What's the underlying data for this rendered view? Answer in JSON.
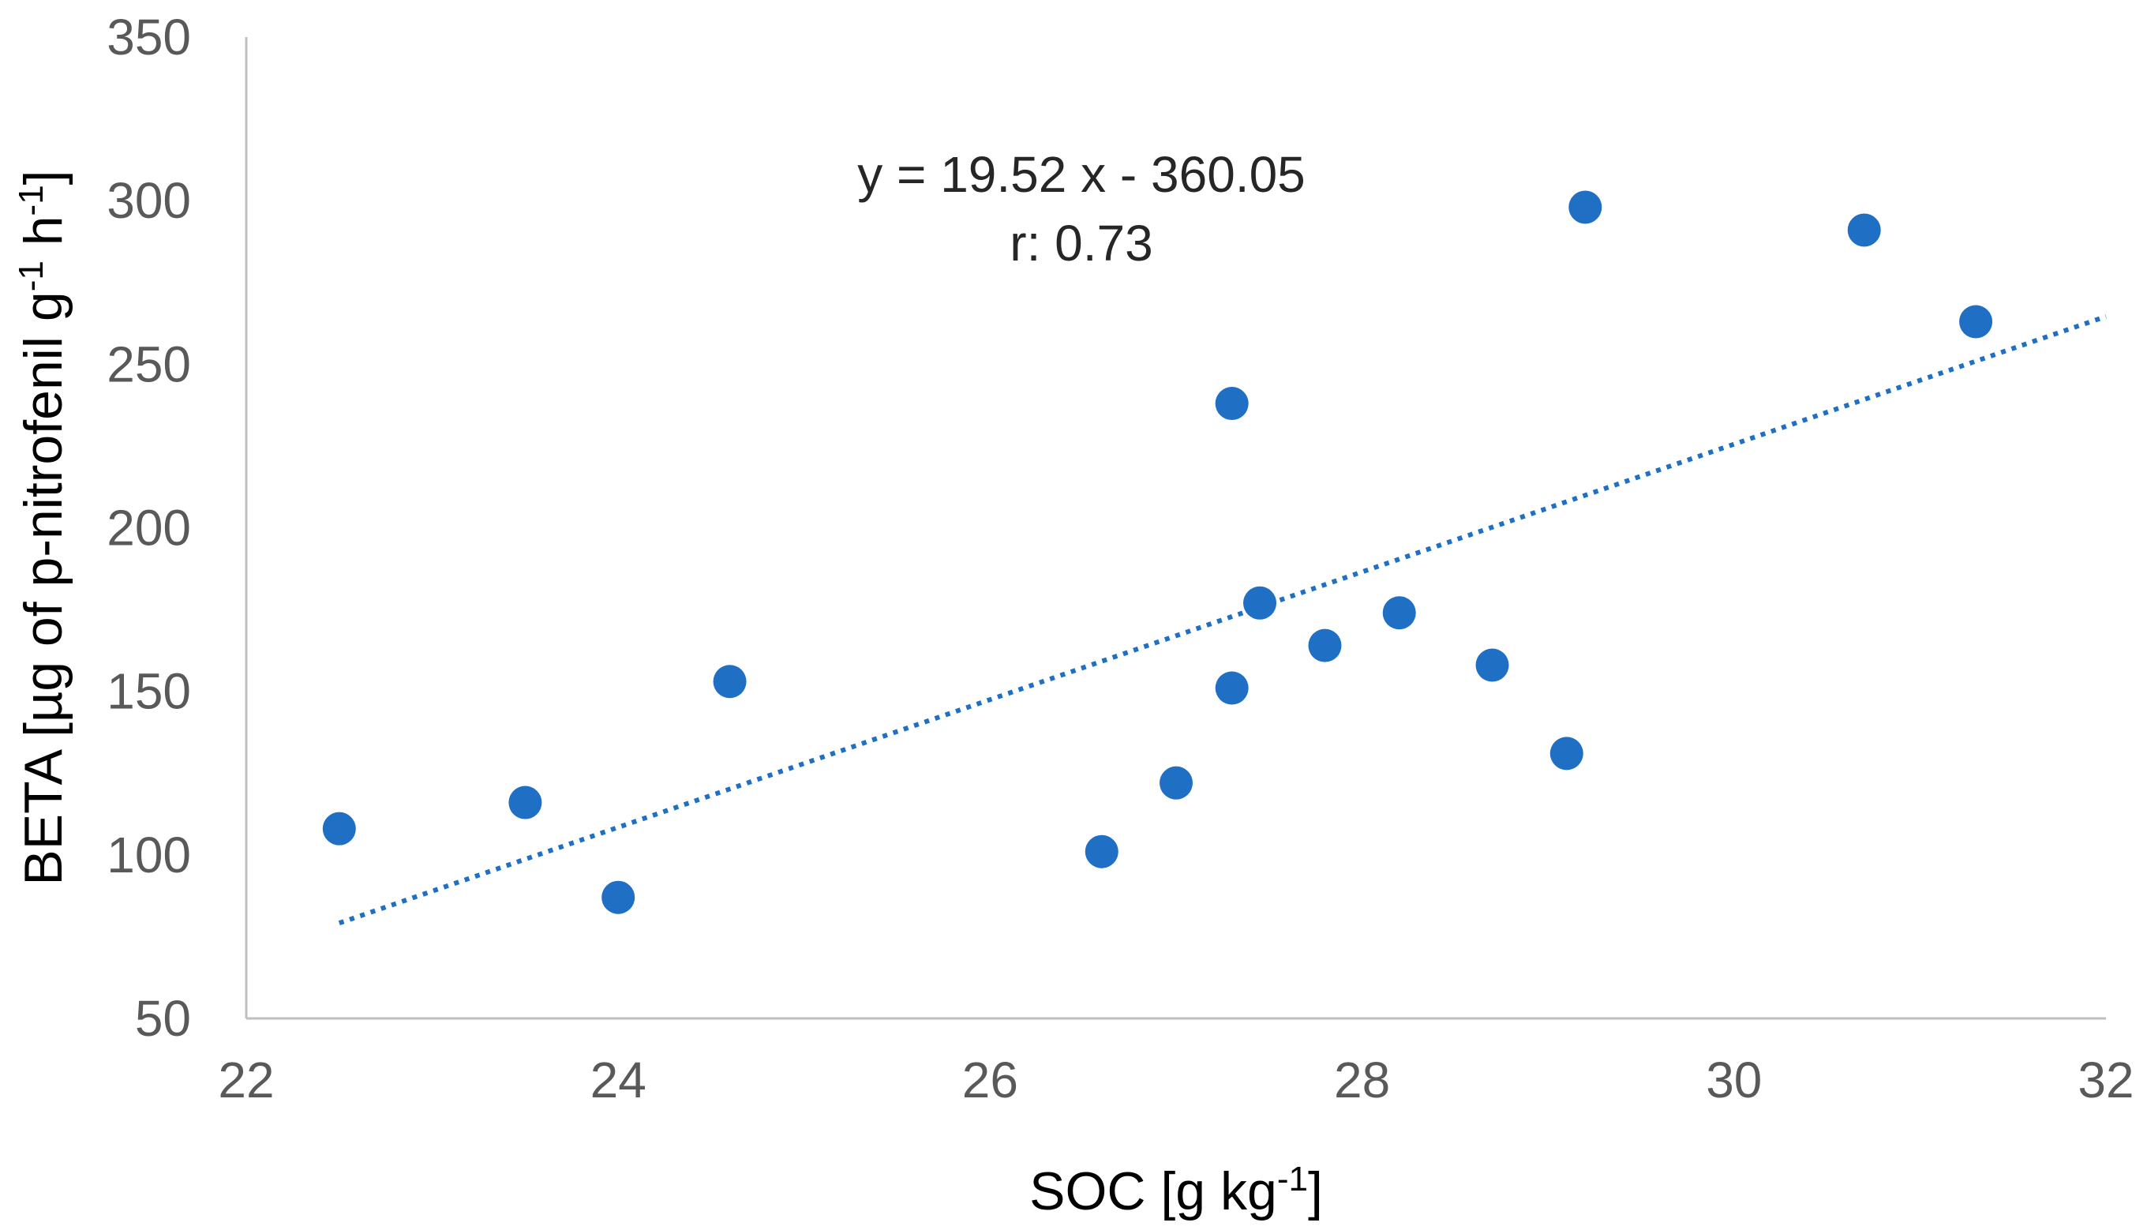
{
  "chart_data": {
    "type": "scatter",
    "title": "",
    "xlabel": "SOC [g kg",
    "xlabel_sup": "-1",
    "xlabel_end": "]",
    "ylabel_parts": [
      "BETA [µg of p-nitrofenil g",
      "-1",
      " h",
      "-1",
      "]"
    ],
    "xlim": [
      22,
      32
    ],
    "ylim": [
      50,
      350
    ],
    "xticks": [
      22,
      24,
      26,
      28,
      30,
      32
    ],
    "yticks": [
      50,
      100,
      150,
      200,
      250,
      300,
      350
    ],
    "grid": false,
    "series": [
      {
        "name": "BETA",
        "color": "#1f6fc5",
        "x": [
          22.5,
          23.5,
          24.0,
          24.6,
          26.6,
          27.0,
          27.3,
          27.3,
          27.45,
          27.8,
          28.2,
          28.7,
          29.1,
          29.2,
          30.7,
          31.3
        ],
        "y": [
          108,
          116,
          87,
          153,
          101,
          122,
          238,
          151,
          177,
          164,
          174,
          158,
          131,
          298,
          291,
          263
        ]
      }
    ],
    "trendline": {
      "type": "linear",
      "slope": 19.52,
      "intercept": -360.05,
      "x_range": [
        22.5,
        32
      ],
      "color": "#1f6fc5",
      "style": "dotted"
    },
    "annotations": {
      "equation": "y = 19.52 x - 360.05",
      "r_value": "r: 0.73"
    }
  }
}
